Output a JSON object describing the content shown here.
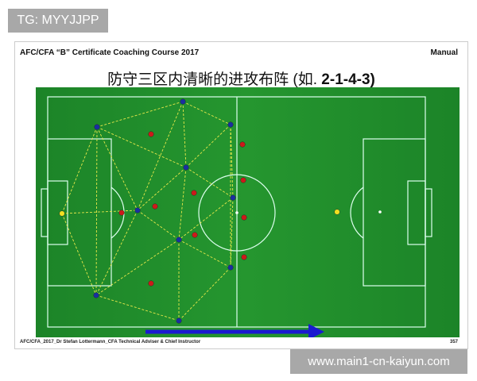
{
  "watermark_top": "TG: MYYJJPP",
  "watermark_bottom": "www.main1-cn-kaiyun.com",
  "slide": {
    "header_left": "AFC/CFA “B” Certificate Coaching Course 2017",
    "header_right": "Manual",
    "title_cn": "防守三区内清晰的进攻布阵 (如. ",
    "title_formation": "2-1-4-3)",
    "footer_left": "AFC/CFA_2017_Dr Stefan Lottermann_CFA Technical Adviser & Chief Instructor",
    "page_number": "357"
  },
  "colors": {
    "pitch": "#1f8a2a",
    "attack_team": "#1a2fa0",
    "defend_team": "#cc1a1a",
    "goalkeeper": "#f0e020",
    "passing_lines": "#e8e84a",
    "arrow": "#1a1ad0"
  }
}
